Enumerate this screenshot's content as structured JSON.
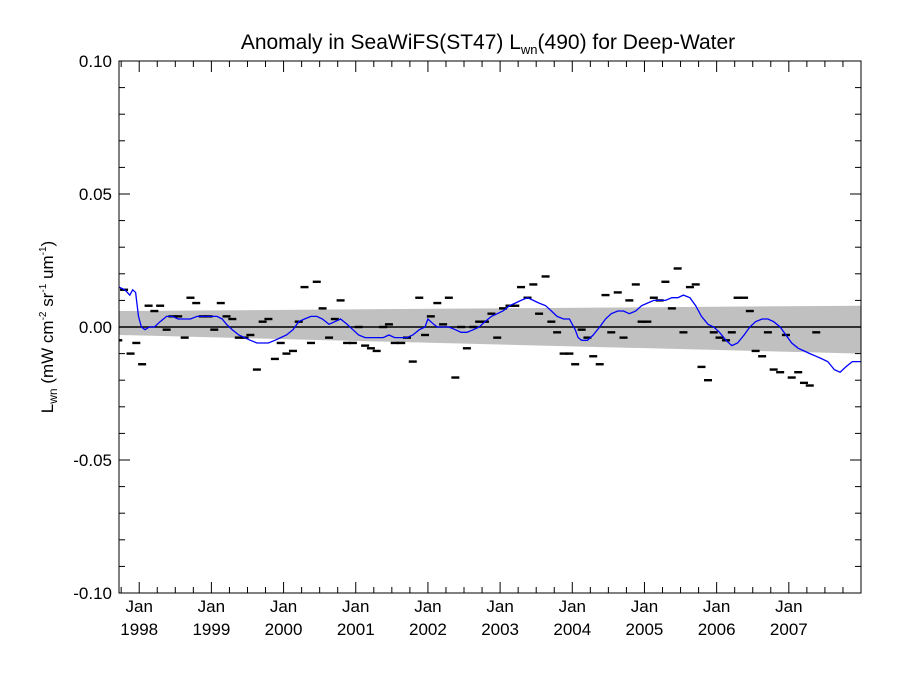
{
  "chart_data": {
    "type": "line",
    "title_parts": {
      "pre": "Anomaly in SeaWiFS(ST47) L",
      "sub": "wn",
      "post": "(490) for Deep-Water"
    },
    "ylabel_parts": {
      "base": "L",
      "base_sub": "wn",
      "units_a": " (mW cm",
      "sup1": "-2",
      "units_b": " sr",
      "sup2": "-1",
      "units_c": " um",
      "sup3": "-1",
      "units_d": ")"
    },
    "ylim": [
      -0.1,
      0.1
    ],
    "xlim": [
      1997.72,
      2008.0
    ],
    "y_ticks": [
      {
        "value": 0.1,
        "label": "0.10"
      },
      {
        "value": 0.05,
        "label": "0.05"
      },
      {
        "value": 0.0,
        "label": "0.00"
      },
      {
        "value": -0.05,
        "label": "-0.05"
      },
      {
        "value": -0.1,
        "label": "-0.10"
      }
    ],
    "y_minor_step": 0.01,
    "x_ticks": [
      {
        "value": 1998.0,
        "month": "Jan",
        "year": "1998"
      },
      {
        "value": 1999.0,
        "month": "Jan",
        "year": "1999"
      },
      {
        "value": 2000.0,
        "month": "Jan",
        "year": "2000"
      },
      {
        "value": 2001.0,
        "month": "Jan",
        "year": "2001"
      },
      {
        "value": 2002.0,
        "month": "Jan",
        "year": "2002"
      },
      {
        "value": 2003.0,
        "month": "Jan",
        "year": "2003"
      },
      {
        "value": 2004.0,
        "month": "Jan",
        "year": "2004"
      },
      {
        "value": 2005.0,
        "month": "Jan",
        "year": "2005"
      },
      {
        "value": 2006.0,
        "month": "Jan",
        "year": "2006"
      },
      {
        "value": 2007.0,
        "month": "Jan",
        "year": "2007"
      }
    ],
    "x_minor_step_months": 3,
    "zero_line": 0.0,
    "confidence_band": {
      "color": "#c0c0c0",
      "x": [
        1997.72,
        2008.0
      ],
      "upper": [
        0.006,
        0.008
      ],
      "lower": [
        -0.003,
        -0.01
      ]
    },
    "series": [
      {
        "kind": "monthly_points",
        "marker": "horizontal-dash",
        "color": "#000000",
        "points": [
          [
            1997.71,
            -0.005
          ],
          [
            1997.79,
            0.014
          ],
          [
            1997.88,
            -0.01
          ],
          [
            1997.96,
            -0.006
          ],
          [
            1998.04,
            -0.014
          ],
          [
            1998.13,
            0.008
          ],
          [
            1998.21,
            0.006
          ],
          [
            1998.29,
            0.008
          ],
          [
            1998.38,
            -0.001
          ],
          [
            1998.46,
            0.004
          ],
          [
            1998.54,
            0.004
          ],
          [
            1998.63,
            -0.004
          ],
          [
            1998.71,
            0.011
          ],
          [
            1998.79,
            0.009
          ],
          [
            1998.88,
            0.004
          ],
          [
            1998.96,
            0.004
          ],
          [
            1999.04,
            -0.001
          ],
          [
            1999.13,
            0.009
          ],
          [
            1999.21,
            0.004
          ],
          [
            1999.29,
            0.003
          ],
          [
            1999.38,
            -0.004
          ],
          [
            1999.46,
            -0.004
          ],
          [
            1999.54,
            -0.003
          ],
          [
            1999.63,
            -0.016
          ],
          [
            1999.71,
            0.002
          ],
          [
            1999.79,
            0.003
          ],
          [
            1999.88,
            -0.012
          ],
          [
            1999.96,
            -0.006
          ],
          [
            2000.04,
            -0.01
          ],
          [
            2000.13,
            -0.009
          ],
          [
            2000.21,
            0.002
          ],
          [
            2000.29,
            0.015
          ],
          [
            2000.38,
            -0.006
          ],
          [
            2000.46,
            0.017
          ],
          [
            2000.54,
            0.007
          ],
          [
            2000.63,
            -0.004
          ],
          [
            2000.71,
            0.003
          ],
          [
            2000.79,
            0.01
          ],
          [
            2000.88,
            -0.006
          ],
          [
            2000.96,
            -0.006
          ],
          [
            2001.04,
            0.0
          ],
          [
            2001.13,
            -0.007
          ],
          [
            2001.21,
            -0.008
          ],
          [
            2001.29,
            -0.009
          ],
          [
            2001.38,
            0.0
          ],
          [
            2001.46,
            0.001
          ],
          [
            2001.54,
            -0.006
          ],
          [
            2001.63,
            -0.006
          ],
          [
            2001.71,
            -0.004
          ],
          [
            2001.79,
            -0.013
          ],
          [
            2001.88,
            0.011
          ],
          [
            2001.96,
            -0.003
          ],
          [
            2002.04,
            0.004
          ],
          [
            2002.13,
            0.009
          ],
          [
            2002.21,
            0.001
          ],
          [
            2002.29,
            0.011
          ],
          [
            2002.38,
            -0.019
          ],
          [
            2002.46,
            0.0
          ],
          [
            2002.54,
            -0.008
          ],
          [
            2002.63,
            0.0
          ],
          [
            2002.71,
            0.002
          ],
          [
            2002.79,
            0.002
          ],
          [
            2002.88,
            0.005
          ],
          [
            2002.96,
            -0.004
          ],
          [
            2003.04,
            0.007
          ],
          [
            2003.13,
            0.008
          ],
          [
            2003.21,
            0.008
          ],
          [
            2003.29,
            0.015
          ],
          [
            2003.38,
            0.011
          ],
          [
            2003.46,
            0.016
          ],
          [
            2003.54,
            0.005
          ],
          [
            2003.63,
            0.019
          ],
          [
            2003.71,
            0.002
          ],
          [
            2003.79,
            -0.002
          ],
          [
            2003.88,
            -0.01
          ],
          [
            2003.96,
            -0.01
          ],
          [
            2004.04,
            -0.014
          ],
          [
            2004.13,
            -0.001
          ],
          [
            2004.21,
            -0.004
          ],
          [
            2004.29,
            -0.011
          ],
          [
            2004.38,
            -0.014
          ],
          [
            2004.46,
            0.012
          ],
          [
            2004.54,
            -0.002
          ],
          [
            2004.63,
            0.013
          ],
          [
            2004.71,
            -0.004
          ],
          [
            2004.79,
            0.01
          ],
          [
            2004.88,
            0.016
          ],
          [
            2004.96,
            0.002
          ],
          [
            2005.04,
            0.002
          ],
          [
            2005.13,
            0.011
          ],
          [
            2005.21,
            0.01
          ],
          [
            2005.29,
            0.017
          ],
          [
            2005.38,
            0.007
          ],
          [
            2005.46,
            0.022
          ],
          [
            2005.54,
            -0.002
          ],
          [
            2005.63,
            0.015
          ],
          [
            2005.71,
            0.016
          ],
          [
            2005.79,
            -0.015
          ],
          [
            2005.88,
            -0.02
          ],
          [
            2005.96,
            -0.002
          ],
          [
            2006.04,
            -0.004
          ],
          [
            2006.13,
            -0.005
          ],
          [
            2006.21,
            -0.002
          ],
          [
            2006.29,
            0.011
          ],
          [
            2006.38,
            0.011
          ],
          [
            2006.46,
            0.006
          ],
          [
            2006.54,
            -0.009
          ],
          [
            2006.63,
            -0.011
          ],
          [
            2006.71,
            -0.002
          ],
          [
            2006.79,
            -0.016
          ],
          [
            2006.88,
            -0.017
          ],
          [
            2006.96,
            -0.003
          ],
          [
            2007.04,
            -0.019
          ],
          [
            2007.13,
            -0.017
          ],
          [
            2007.21,
            -0.021
          ],
          [
            2007.29,
            -0.022
          ],
          [
            2007.38,
            -0.002
          ]
        ]
      },
      {
        "kind": "smoothed",
        "color": "#0000ff",
        "points": [
          [
            1997.72,
            0.015
          ],
          [
            1997.8,
            0.014
          ],
          [
            1997.87,
            0.012
          ],
          [
            1997.91,
            0.014
          ],
          [
            1997.95,
            0.013
          ],
          [
            1997.99,
            0.004
          ],
          [
            1998.03,
            0.0
          ],
          [
            1998.08,
            -0.001
          ],
          [
            1998.14,
            0.0
          ],
          [
            1998.21,
            0.0
          ],
          [
            1998.29,
            0.002
          ],
          [
            1998.38,
            0.004
          ],
          [
            1998.46,
            0.004
          ],
          [
            1998.54,
            0.003
          ],
          [
            1998.63,
            0.003
          ],
          [
            1998.71,
            0.003
          ],
          [
            1998.8,
            0.004
          ],
          [
            1998.9,
            0.004
          ],
          [
            1999.0,
            0.004
          ],
          [
            1999.08,
            0.004
          ],
          [
            1999.15,
            0.003
          ],
          [
            1999.21,
            0.001
          ],
          [
            1999.29,
            -0.001
          ],
          [
            1999.38,
            -0.003
          ],
          [
            1999.46,
            -0.004
          ],
          [
            1999.54,
            -0.005
          ],
          [
            1999.63,
            -0.006
          ],
          [
            1999.71,
            -0.006
          ],
          [
            1999.79,
            -0.006
          ],
          [
            1999.88,
            -0.005
          ],
          [
            1999.96,
            -0.004
          ],
          [
            2000.04,
            -0.003
          ],
          [
            2000.13,
            -0.001
          ],
          [
            2000.21,
            0.002
          ],
          [
            2000.29,
            0.003
          ],
          [
            2000.38,
            0.004
          ],
          [
            2000.46,
            0.004
          ],
          [
            2000.54,
            0.003
          ],
          [
            2000.63,
            0.001
          ],
          [
            2000.71,
            0.002
          ],
          [
            2000.79,
            0.003
          ],
          [
            2000.88,
            0.001
          ],
          [
            2000.96,
            -0.001
          ],
          [
            2001.04,
            -0.003
          ],
          [
            2001.13,
            -0.004
          ],
          [
            2001.21,
            -0.004
          ],
          [
            2001.29,
            -0.004
          ],
          [
            2001.38,
            -0.004
          ],
          [
            2001.46,
            -0.003
          ],
          [
            2001.54,
            -0.004
          ],
          [
            2001.63,
            -0.004
          ],
          [
            2001.71,
            -0.004
          ],
          [
            2001.79,
            -0.003
          ],
          [
            2001.88,
            -0.001
          ],
          [
            2001.96,
            0.0
          ],
          [
            2002.0,
            0.003
          ],
          [
            2002.04,
            0.002
          ],
          [
            2002.08,
            0.001
          ],
          [
            2002.13,
            0.0
          ],
          [
            2002.21,
            0.0
          ],
          [
            2002.29,
            0.0
          ],
          [
            2002.38,
            -0.001
          ],
          [
            2002.46,
            -0.002
          ],
          [
            2002.54,
            -0.002
          ],
          [
            2002.63,
            -0.001
          ],
          [
            2002.71,
            0.0
          ],
          [
            2002.79,
            0.002
          ],
          [
            2002.88,
            0.004
          ],
          [
            2002.96,
            0.005
          ],
          [
            2003.04,
            0.006
          ],
          [
            2003.13,
            0.008
          ],
          [
            2003.21,
            0.009
          ],
          [
            2003.29,
            0.01
          ],
          [
            2003.38,
            0.011
          ],
          [
            2003.46,
            0.01
          ],
          [
            2003.54,
            0.009
          ],
          [
            2003.63,
            0.008
          ],
          [
            2003.71,
            0.006
          ],
          [
            2003.79,
            0.004
          ],
          [
            2003.88,
            0.003
          ],
          [
            2003.96,
            0.003
          ],
          [
            2004.04,
            -0.001
          ],
          [
            2004.08,
            -0.004
          ],
          [
            2004.13,
            -0.005
          ],
          [
            2004.21,
            -0.005
          ],
          [
            2004.29,
            -0.003
          ],
          [
            2004.38,
            0.0
          ],
          [
            2004.46,
            0.003
          ],
          [
            2004.54,
            0.005
          ],
          [
            2004.63,
            0.006
          ],
          [
            2004.71,
            0.006
          ],
          [
            2004.79,
            0.005
          ],
          [
            2004.88,
            0.006
          ],
          [
            2004.96,
            0.008
          ],
          [
            2005.04,
            0.009
          ],
          [
            2005.13,
            0.01
          ],
          [
            2005.21,
            0.01
          ],
          [
            2005.29,
            0.01
          ],
          [
            2005.38,
            0.011
          ],
          [
            2005.46,
            0.011
          ],
          [
            2005.54,
            0.012
          ],
          [
            2005.63,
            0.011
          ],
          [
            2005.71,
            0.008
          ],
          [
            2005.79,
            0.004
          ],
          [
            2005.88,
            0.001
          ],
          [
            2005.96,
            0.0
          ],
          [
            2006.04,
            -0.002
          ],
          [
            2006.13,
            -0.005
          ],
          [
            2006.21,
            -0.007
          ],
          [
            2006.29,
            -0.006
          ],
          [
            2006.38,
            -0.003
          ],
          [
            2006.46,
            0.0
          ],
          [
            2006.54,
            0.002
          ],
          [
            2006.63,
            0.003
          ],
          [
            2006.71,
            0.003
          ],
          [
            2006.79,
            0.002
          ],
          [
            2006.88,
            0.0
          ],
          [
            2006.96,
            -0.003
          ],
          [
            2007.04,
            -0.006
          ],
          [
            2007.13,
            -0.008
          ],
          [
            2007.21,
            -0.009
          ],
          [
            2007.29,
            -0.01
          ],
          [
            2007.38,
            -0.011
          ],
          [
            2007.46,
            -0.012
          ],
          [
            2007.54,
            -0.013
          ],
          [
            2007.63,
            -0.016
          ],
          [
            2007.71,
            -0.017
          ],
          [
            2007.79,
            -0.015
          ],
          [
            2007.88,
            -0.013
          ],
          [
            2007.96,
            -0.013
          ],
          [
            2008.0,
            -0.013
          ]
        ]
      }
    ]
  }
}
